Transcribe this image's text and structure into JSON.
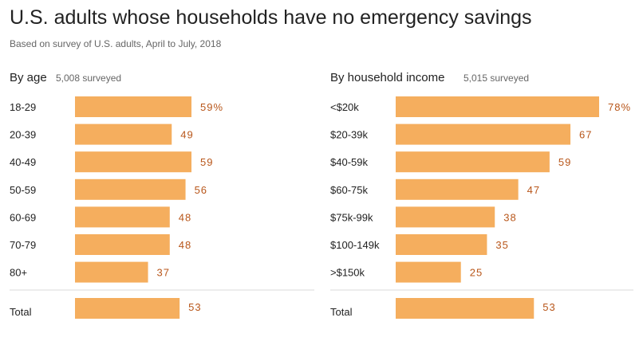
{
  "title": "U.S. adults whose households have no emergency savings",
  "subtitle": "Based on survey of U.S. adults, April to July, 2018",
  "colors": {
    "bar": "#f5ae5e",
    "value": "#b8561a",
    "text": "#222222",
    "muted": "#666666"
  },
  "chart_data": [
    {
      "type": "bar",
      "orientation": "horizontal",
      "title": "By age",
      "note": "5,008 surveyed",
      "categories": [
        "18-29",
        "20-39",
        "40-49",
        "50-59",
        "60-69",
        "70-79",
        "80+"
      ],
      "values": [
        59,
        49,
        59,
        56,
        48,
        48,
        37
      ],
      "value_labels": [
        "59%",
        "49",
        "59",
        "56",
        "48",
        "48",
        "37"
      ],
      "total": {
        "label": "Total",
        "value": 53,
        "value_label": "53"
      },
      "xlim": [
        0,
        78
      ]
    },
    {
      "type": "bar",
      "orientation": "horizontal",
      "title": "By household income",
      "note": "5,015 surveyed",
      "categories": [
        "<$20k",
        "$20-39k",
        "$40-59k",
        "$60-75k",
        "$75k-99k",
        "$100-149k",
        ">$150k"
      ],
      "values": [
        78,
        67,
        59,
        47,
        38,
        35,
        25
      ],
      "value_labels": [
        "78%",
        "67",
        "59",
        "47",
        "38",
        "35",
        "25"
      ],
      "total": {
        "label": "Total",
        "value": 53,
        "value_label": "53"
      },
      "xlim": [
        0,
        78
      ]
    }
  ]
}
